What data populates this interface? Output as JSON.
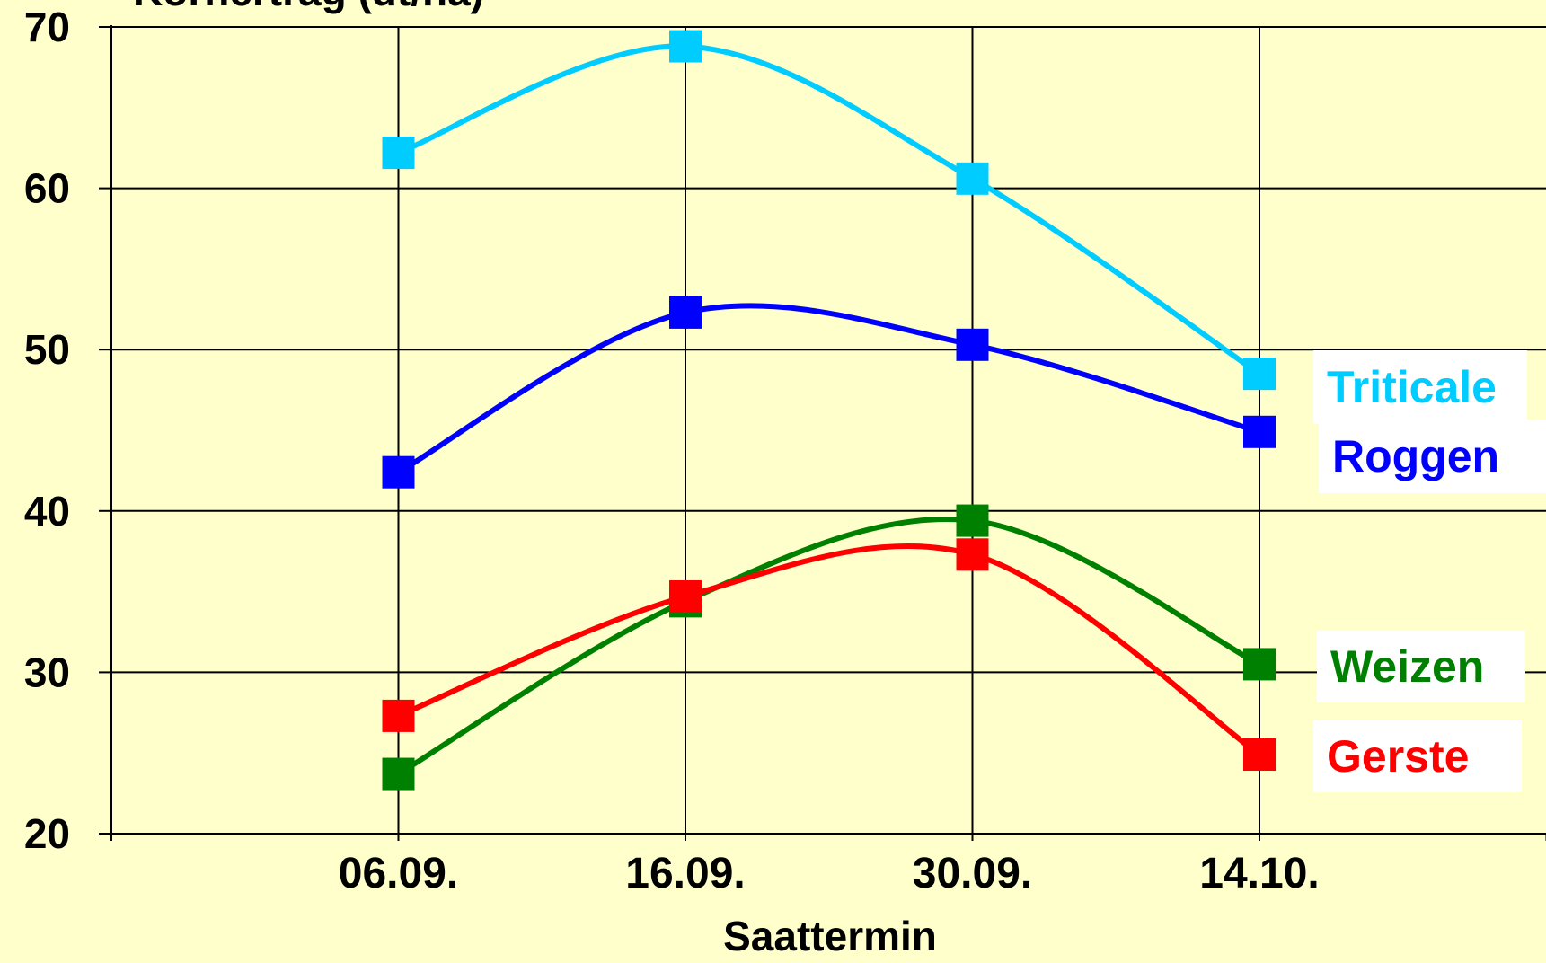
{
  "colors": {
    "background": "#ffffcc",
    "axis": "#000000",
    "grid": "#000000",
    "label_box": "#ffffff"
  },
  "chart_data": {
    "type": "line",
    "title": "Kornertrag (dt/ha)",
    "xlabel": "Saattermin",
    "ylabel": "Kornertrag (dt/ha)",
    "ylim": [
      20,
      70
    ],
    "y_ticks": [
      "20",
      "30",
      "40",
      "50",
      "60",
      "70"
    ],
    "categories": [
      "06.09.",
      "16.09.",
      "30.09.",
      "14.10."
    ],
    "grid": true,
    "smooth": true,
    "marker": "square",
    "legend": "right",
    "series": [
      {
        "name": "Triticale",
        "color": "#00ccff",
        "values": [
          62.2,
          68.8,
          60.6,
          48.5
        ]
      },
      {
        "name": "Roggen",
        "color": "#0000ff",
        "values": [
          42.4,
          52.3,
          50.3,
          44.9
        ]
      },
      {
        "name": "Weizen",
        "color": "#008000",
        "values": [
          23.7,
          34.4,
          39.4,
          30.5
        ]
      },
      {
        "name": "Gerste",
        "color": "#ff0000",
        "values": [
          27.3,
          34.7,
          37.3,
          24.9
        ]
      }
    ]
  }
}
